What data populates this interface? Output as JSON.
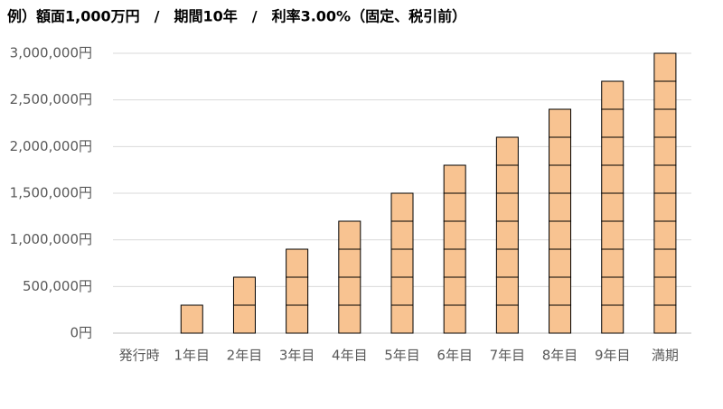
{
  "chart_data": {
    "type": "stacked_bar",
    "title": "例）額面1,000万円　/　期間10年　/　利率3.00%（固定、税引前）",
    "categories": [
      "発行時",
      "1年目",
      "2年目",
      "3年目",
      "4年目",
      "5年目",
      "6年目",
      "7年目",
      "8年目",
      "9年目",
      "満期"
    ],
    "series": [
      {
        "color": "#f8c391",
        "values": [
          null,
          300000,
          300000,
          300000,
          300000,
          300000,
          300000,
          300000,
          300000,
          300000,
          300000
        ]
      },
      {
        "color": "#f8c391",
        "values": [
          null,
          null,
          300000,
          300000,
          300000,
          300000,
          300000,
          300000,
          300000,
          300000,
          300000
        ]
      },
      {
        "color": "#f8c391",
        "values": [
          null,
          null,
          null,
          300000,
          300000,
          300000,
          300000,
          300000,
          300000,
          300000,
          300000
        ]
      },
      {
        "color": "#f8c391",
        "values": [
          null,
          null,
          null,
          null,
          300000,
          300000,
          300000,
          300000,
          300000,
          300000,
          300000
        ]
      },
      {
        "color": "#f8c391",
        "values": [
          null,
          null,
          null,
          null,
          null,
          300000,
          300000,
          300000,
          300000,
          300000,
          300000
        ]
      },
      {
        "color": "#f8c391",
        "values": [
          null,
          null,
          null,
          null,
          null,
          null,
          300000,
          300000,
          300000,
          300000,
          300000
        ]
      },
      {
        "color": "#f8c391",
        "values": [
          null,
          null,
          null,
          null,
          null,
          null,
          null,
          300000,
          300000,
          300000,
          300000
        ]
      },
      {
        "color": "#f8c391",
        "values": [
          null,
          null,
          null,
          null,
          null,
          null,
          null,
          null,
          300000,
          300000,
          300000
        ]
      },
      {
        "color": "#f8c391",
        "values": [
          null,
          null,
          null,
          null,
          null,
          null,
          null,
          null,
          null,
          300000,
          300000
        ]
      },
      {
        "color": "#f8c391",
        "values": [
          null,
          null,
          null,
          null,
          null,
          null,
          null,
          null,
          null,
          null,
          300000
        ]
      }
    ],
    "ylim": [
      0,
      3000000
    ],
    "yticks": [
      {
        "value": 0,
        "label": "0円"
      },
      {
        "value": 500000,
        "label": "500,000円"
      },
      {
        "value": 1000000,
        "label": "1,000,000円"
      },
      {
        "value": 1500000,
        "label": "1,500,000円"
      },
      {
        "value": 2000000,
        "label": "2,000,000円"
      },
      {
        "value": 2500000,
        "label": "2,500,000円"
      },
      {
        "value": 3000000,
        "label": "3,000,000円"
      }
    ],
    "grid": true
  }
}
